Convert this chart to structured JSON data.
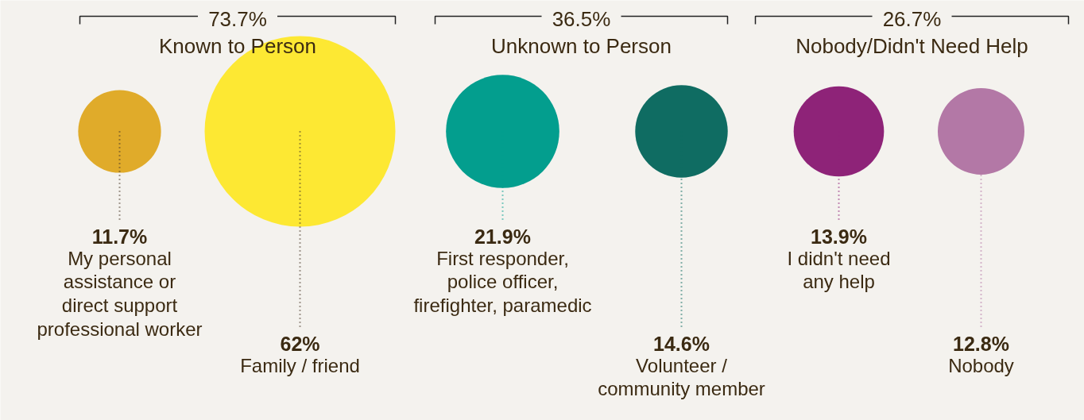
{
  "chart_data": {
    "type": "other",
    "categories": [
      "My personal\nassistance or\ndirect support\nprofessional worker",
      "Family / friend",
      "First responder,\npolice officer,\nfirefighter, paramedic",
      "Volunteer /\ncommunity member",
      "I didn't need\nany help",
      "Nobody"
    ],
    "values": [
      11.7,
      62,
      21.9,
      14.6,
      13.9,
      12.8
    ],
    "value_labels": [
      "11.7%",
      "62%",
      "21.9%",
      "14.6%",
      "13.9%",
      "12.8%"
    ],
    "colors": [
      "#e0ab2a",
      "#fde833",
      "#039e8e",
      "#0f6c62",
      "#8e2378",
      "#b378a6"
    ],
    "annotations": [
      "73.7%\nKnown to Person",
      "36.5%\nUnknown to Person",
      "26.7%\nNobody/Didn't Need Help"
    ]
  }
}
